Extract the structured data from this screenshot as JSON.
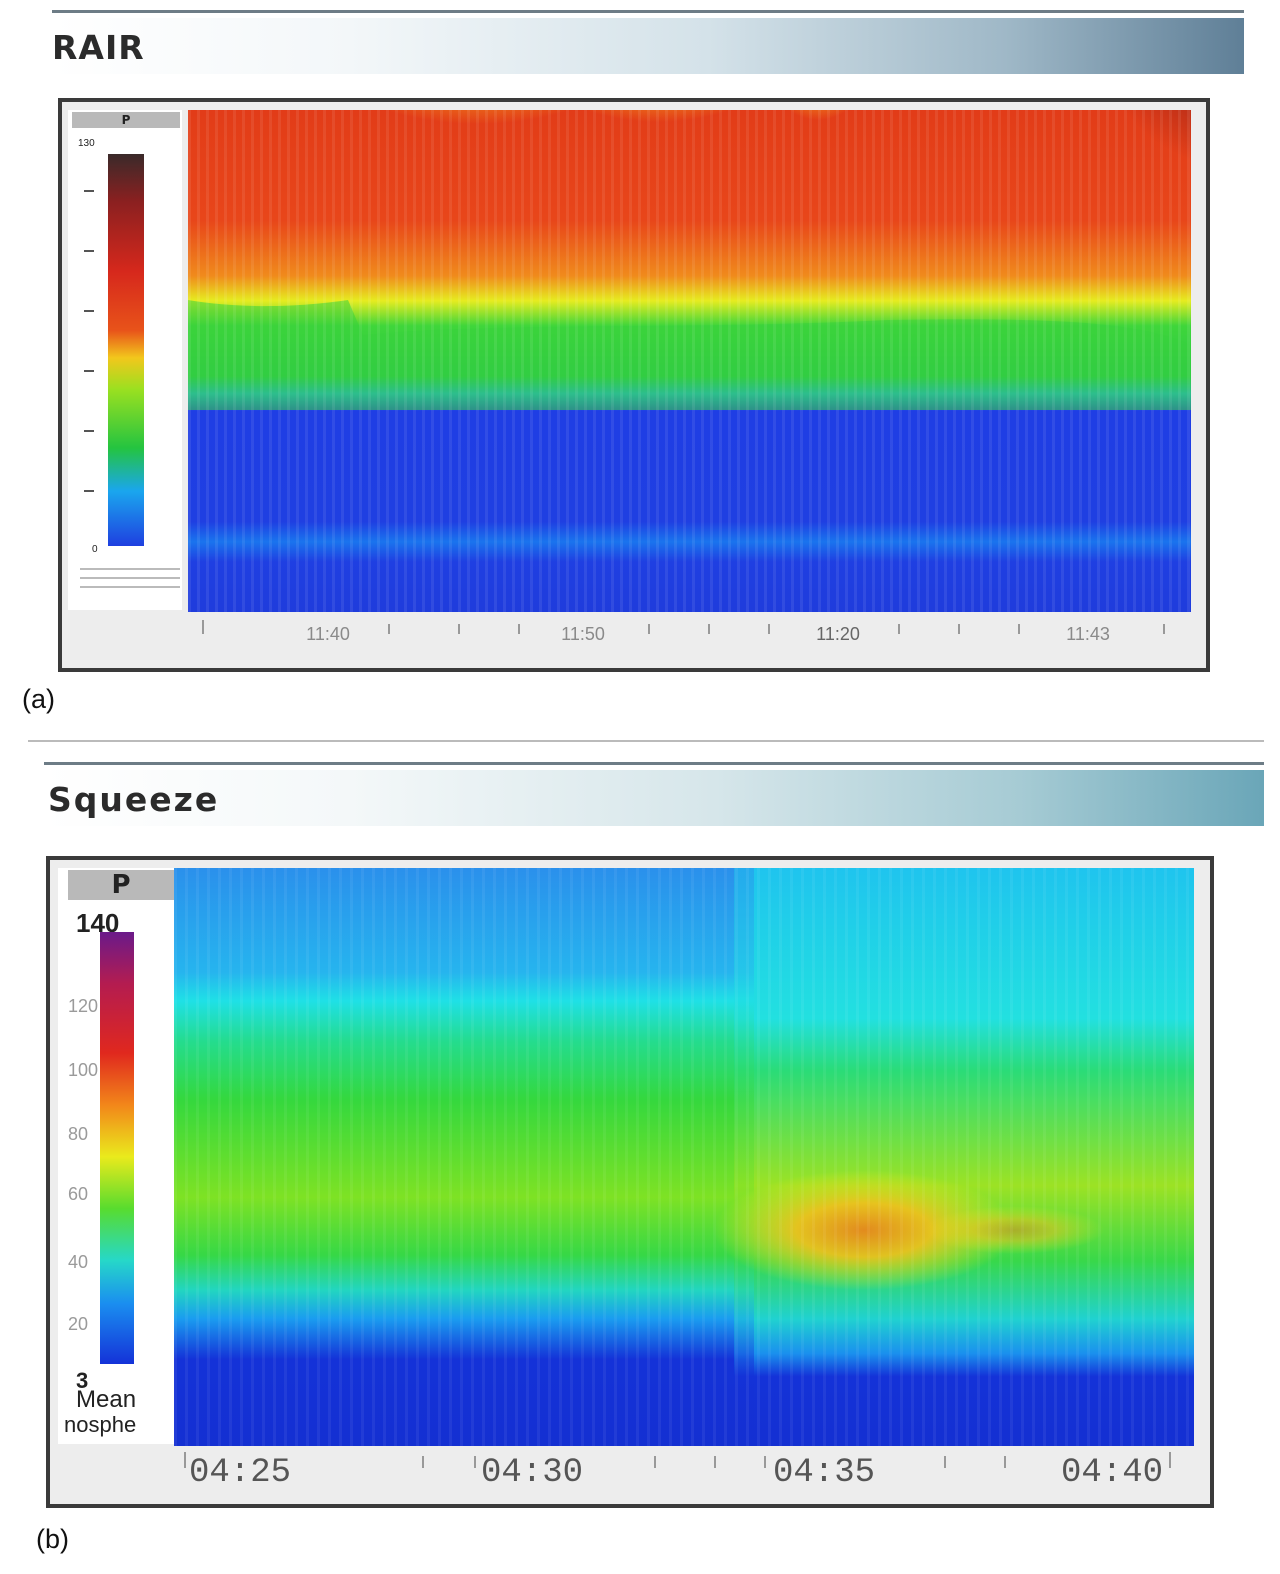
{
  "panels": [
    {
      "id": "a",
      "letter": "(a)",
      "title": "RAIR",
      "legend": {
        "header": "P",
        "max_label": "130",
        "min_label": "0",
        "caption": ""
      },
      "chart_data": {
        "type": "heatmap",
        "title": "RAIR",
        "xlabel": "",
        "ylabel": "P",
        "color_scale": {
          "min": 0,
          "max": 130,
          "colors": [
            "#1f3fe0",
            "#1aa0f0",
            "#22c83a",
            "#a8e020",
            "#f2e818",
            "#f39a1c",
            "#e8431a",
            "#c81e1e",
            "#5a2a2a"
          ]
        },
        "x_ticks": [
          "11:40",
          "11:50",
          "11:20",
          "11:43"
        ],
        "bands_fraction_of_height": {
          "red_top": 0.0,
          "green_start": 0.38,
          "blue_start": 0.56,
          "deep_blue_start": 0.84
        }
      }
    },
    {
      "id": "b",
      "letter": "(b)",
      "title": "Squeeze",
      "legend": {
        "header": "P",
        "max_label": "140",
        "min_label": "3",
        "caption_1": "Mean",
        "caption_2": "nosphe",
        "ticks": [
          "120",
          "100",
          "80",
          "60",
          "40",
          "20"
        ]
      },
      "chart_data": {
        "type": "heatmap",
        "title": "Squeeze",
        "xlabel": "",
        "ylabel": "P",
        "color_scale": {
          "min": 3,
          "max": 140,
          "colors": [
            "#1432d8",
            "#1a8ef0",
            "#1fe0e6",
            "#28dc6a",
            "#6fe22a",
            "#e6e81c",
            "#f29a1a",
            "#e0281e",
            "#8a1a8a"
          ]
        },
        "x_ticks": [
          "04:25",
          "04:30",
          "04:35",
          "04:40"
        ],
        "bands_fraction_of_height": {
          "top_blue": 0.0,
          "cyan_start": 0.2,
          "green_start": 0.37,
          "cyan_low_start": 0.73,
          "deep_blue_start": 0.85
        }
      }
    }
  ]
}
